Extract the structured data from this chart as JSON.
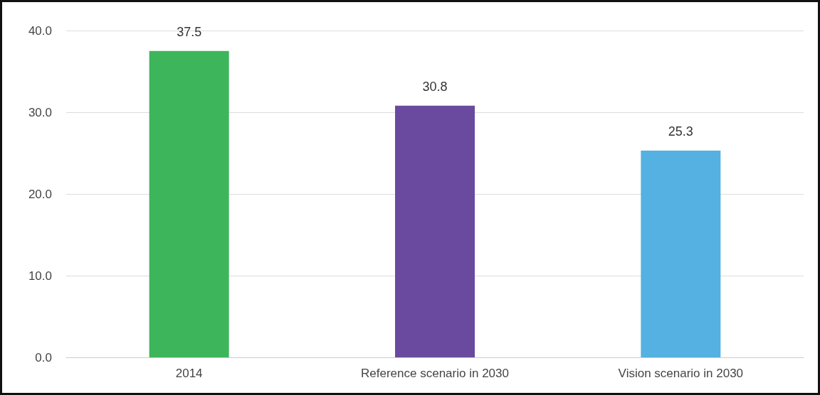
{
  "chart_data": {
    "type": "bar",
    "categories": [
      "2014",
      "Reference scenario in 2030",
      "Vision scenario in 2030"
    ],
    "values": [
      37.5,
      30.8,
      25.3
    ],
    "colors": [
      "#3db55b",
      "#6a4a9f",
      "#54b1e1"
    ],
    "ylim": [
      0,
      40
    ],
    "yticks": [
      {
        "value": 0,
        "label": "0.0"
      },
      {
        "value": 10,
        "label": "10.0"
      },
      {
        "value": 20,
        "label": "20.0"
      },
      {
        "value": 30,
        "label": "30.0"
      },
      {
        "value": 40,
        "label": "40.0"
      }
    ],
    "grid": "y",
    "data_labels": true
  }
}
